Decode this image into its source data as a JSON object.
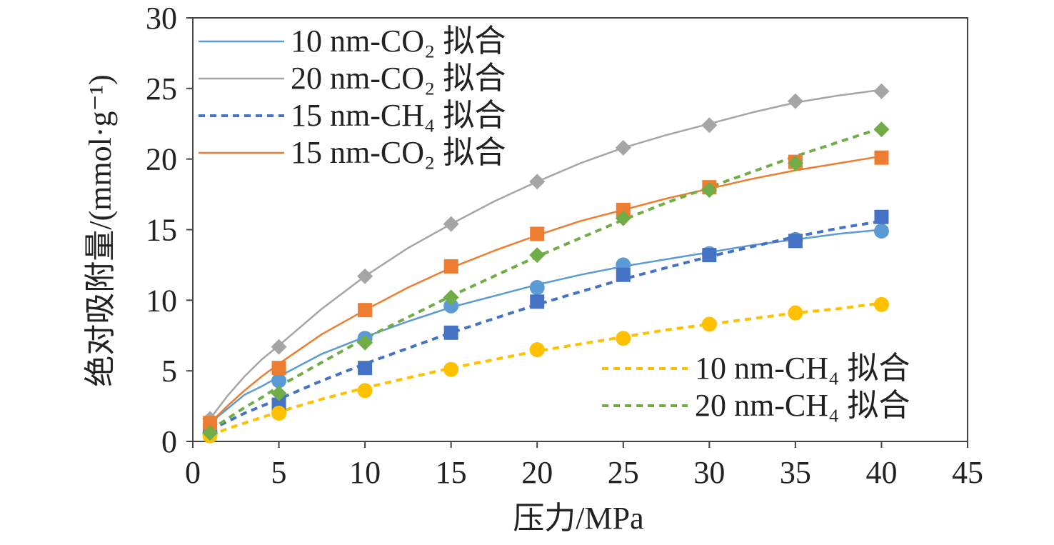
{
  "chart_data": {
    "type": "scatter",
    "xlabel": "压力/MPa",
    "ylabel": "绝对吸附量/(mmol·g⁻¹)",
    "xlim": [
      0,
      45
    ],
    "ylim": [
      0,
      30
    ],
    "x_ticks": [
      "0",
      "5",
      "10",
      "15",
      "20",
      "25",
      "30",
      "35",
      "40",
      "45"
    ],
    "y_ticks": [
      "0",
      "5",
      "10",
      "15",
      "20",
      "25",
      "30"
    ],
    "grid": false,
    "legend_placement": [
      "top-left",
      "bottom-right"
    ],
    "series": [
      {
        "key": "s10co2",
        "color": "#5b9bd5",
        "marker": "circle",
        "points_x": [
          1,
          5,
          10,
          15,
          20,
          25,
          30,
          35,
          40
        ],
        "points_y": [
          0.6,
          4.3,
          7.3,
          9.6,
          10.9,
          12.5,
          13.3,
          14.3,
          14.9
        ],
        "fit_style": "solid",
        "fit_label": "10 nm-CO₂ 拟合",
        "fit_x": [
          1,
          2,
          3,
          4,
          5,
          7.5,
          10,
          12.5,
          15,
          17.5,
          20,
          22.5,
          25,
          27.5,
          30,
          32.5,
          35,
          37.5,
          40
        ],
        "fit_y": [
          1.3,
          2.3,
          3.3,
          3.9,
          4.6,
          6.2,
          7.4,
          8.5,
          9.5,
          10.3,
          11.1,
          11.8,
          12.4,
          12.9,
          13.4,
          13.9,
          14.3,
          14.7,
          15.0
        ]
      },
      {
        "key": "s20co2",
        "color": "#a5a5a5",
        "marker": "diamond",
        "points_x": [
          1,
          5,
          10,
          15,
          20,
          25,
          30,
          35,
          40
        ],
        "points_y": [
          1.6,
          6.7,
          11.7,
          15.4,
          18.4,
          20.8,
          22.4,
          24.1,
          24.8
        ],
        "fit_style": "solid",
        "fit_label": "20 nm-CO₂ 拟合",
        "fit_x": [
          1,
          2,
          3,
          4,
          5,
          7.5,
          10,
          12.5,
          15,
          17.5,
          20,
          22.5,
          25,
          27.5,
          30,
          32.5,
          35,
          37.5,
          40
        ],
        "fit_y": [
          1.6,
          3.2,
          4.6,
          5.8,
          6.8,
          9.4,
          11.7,
          13.7,
          15.4,
          17.0,
          18.4,
          19.7,
          20.8,
          21.7,
          22.5,
          23.3,
          24.0,
          24.5,
          24.9
        ]
      },
      {
        "key": "s15ch4",
        "color": "#4472c4",
        "marker": "square",
        "points_x": [
          1,
          5,
          10,
          15,
          20,
          25,
          30,
          35,
          40
        ],
        "points_y": [
          0.8,
          2.6,
          5.2,
          7.7,
          9.9,
          11.8,
          13.2,
          14.2,
          15.9
        ],
        "fit_style": "dashed",
        "fit_label": "15 nm-CH₄ 拟合",
        "fit_x": [
          1,
          2,
          3,
          4,
          5,
          7.5,
          10,
          12.5,
          15,
          17.5,
          20,
          22.5,
          25,
          27.5,
          30,
          32.5,
          35,
          37.5,
          40
        ],
        "fit_y": [
          0.8,
          1.4,
          2.0,
          2.5,
          3.0,
          4.3,
          5.5,
          6.6,
          7.7,
          8.7,
          9.7,
          10.6,
          11.5,
          12.3,
          13.1,
          13.8,
          14.5,
          15.1,
          15.6
        ]
      },
      {
        "key": "s15co2",
        "color": "#ed7d31",
        "marker": "square",
        "points_x": [
          1,
          5,
          10,
          15,
          20,
          25,
          30,
          35,
          40
        ],
        "points_y": [
          1.3,
          5.2,
          9.3,
          12.4,
          14.7,
          16.4,
          18.0,
          19.8,
          20.1
        ],
        "fit_style": "solid",
        "fit_label": "15 nm-CO₂ 拟合",
        "fit_x": [
          1,
          2,
          3,
          4,
          5,
          7.5,
          10,
          12.5,
          15,
          17.5,
          20,
          22.5,
          25,
          27.5,
          30,
          32.5,
          35,
          37.5,
          40
        ],
        "fit_y": [
          1.3,
          2.5,
          3.6,
          4.6,
          5.5,
          7.6,
          9.3,
          10.9,
          12.3,
          13.5,
          14.6,
          15.6,
          16.4,
          17.2,
          17.9,
          18.6,
          19.2,
          19.7,
          20.2
        ]
      },
      {
        "key": "s10ch4",
        "color": "#ffc000",
        "marker": "circle",
        "points_x": [
          1,
          5,
          10,
          15,
          20,
          25,
          30,
          35,
          40
        ],
        "points_y": [
          0.4,
          2.0,
          3.6,
          5.1,
          6.5,
          7.3,
          8.3,
          9.1,
          9.7
        ],
        "fit_style": "dashed",
        "fit_label": "10 nm-CH₄ 拟合",
        "fit_x": [
          1,
          2,
          3,
          4,
          5,
          7.5,
          10,
          12.5,
          15,
          17.5,
          20,
          22.5,
          25,
          27.5,
          30,
          32.5,
          35,
          37.5,
          40
        ],
        "fit_y": [
          0.4,
          0.9,
          1.3,
          1.7,
          2.1,
          3.0,
          3.8,
          4.5,
          5.2,
          5.8,
          6.4,
          6.9,
          7.4,
          7.9,
          8.3,
          8.7,
          9.1,
          9.4,
          9.8
        ]
      },
      {
        "key": "s20ch4",
        "color": "#70ad47",
        "marker": "diamond",
        "points_x": [
          1,
          5,
          10,
          15,
          20,
          25,
          30,
          35,
          40
        ],
        "points_y": [
          0.6,
          3.4,
          7.0,
          10.2,
          13.2,
          15.8,
          17.8,
          19.7,
          22.1
        ],
        "fit_style": "dashed",
        "fit_label": "20 nm-CH₄ 拟合",
        "fit_x": [
          1,
          2,
          3,
          4,
          5,
          7.5,
          10,
          12.5,
          15,
          17.5,
          20,
          22.5,
          25,
          27.5,
          30,
          32.5,
          35,
          37.5,
          40
        ],
        "fit_y": [
          0.8,
          1.6,
          2.4,
          3.1,
          3.9,
          5.6,
          7.3,
          8.8,
          10.3,
          11.7,
          13.1,
          14.4,
          15.7,
          16.9,
          18.0,
          19.1,
          20.2,
          21.2,
          22.2
        ]
      }
    ],
    "legend_top_left": [
      "s10co2",
      "s20co2",
      "s15ch4",
      "s15co2"
    ],
    "legend_bottom_right": [
      "s10ch4",
      "s20ch4"
    ]
  }
}
